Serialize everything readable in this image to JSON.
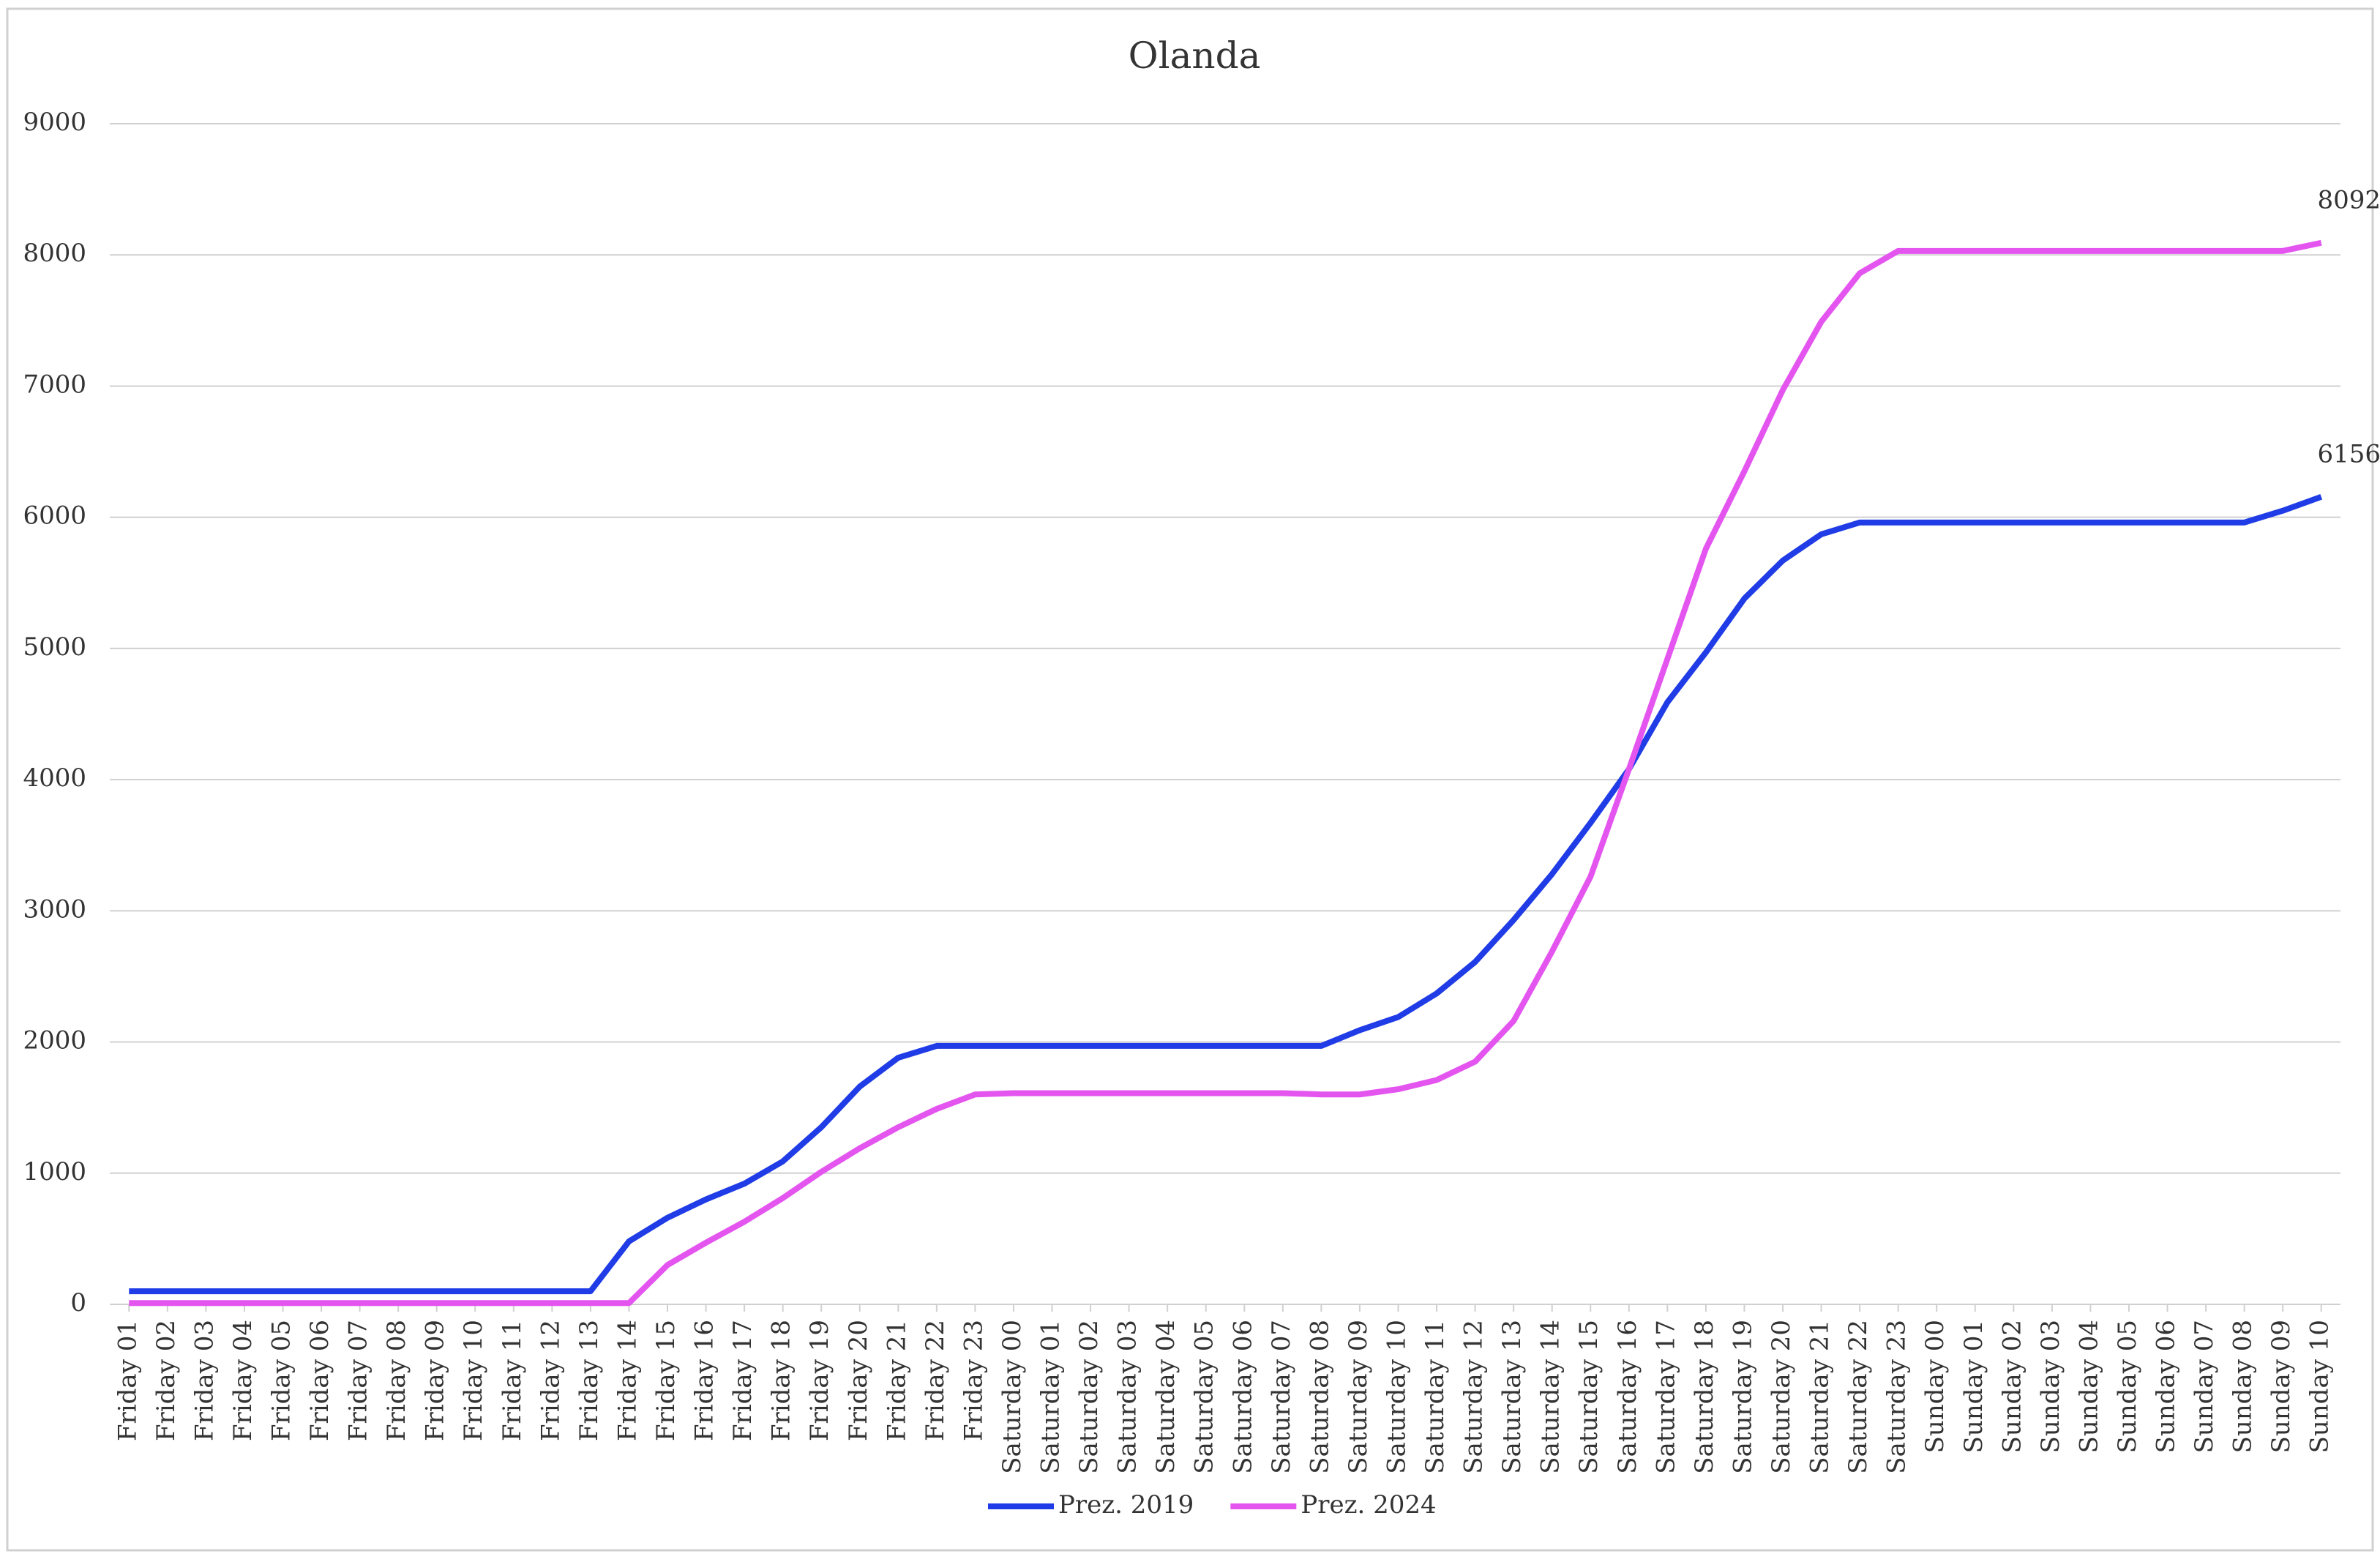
{
  "chart_data": {
    "type": "line",
    "title": "Olanda",
    "categories": [
      "Friday 01",
      "Friday 02",
      "Friday 03",
      "Friday 04",
      "Friday 05",
      "Friday 06",
      "Friday 07",
      "Friday 08",
      "Friday 09",
      "Friday 10",
      "Friday 11",
      "Friday 12",
      "Friday 13",
      "Friday 14",
      "Friday 15",
      "Friday 16",
      "Friday 17",
      "Friday 18",
      "Friday 19",
      "Friday 20",
      "Friday 21",
      "Friday 22",
      "Friday 23",
      "Saturday 00",
      "Saturday 01",
      "Saturday 02",
      "Saturday 03",
      "Saturday 04",
      "Saturday 05",
      "Saturday 06",
      "Saturday 07",
      "Saturday 08",
      "Saturday 09",
      "Saturday 10",
      "Saturday 11",
      "Saturday 12",
      "Saturday 13",
      "Saturday 14",
      "Saturday 15",
      "Saturday 16",
      "Saturday 17",
      "Saturday 18",
      "Saturday 19",
      "Saturday 20",
      "Saturday 21",
      "Saturday 22",
      "Saturday 23",
      "Sunday 00",
      "Sunday 01",
      "Sunday 02",
      "Sunday 03",
      "Sunday 04",
      "Sunday 05",
      "Sunday 06",
      "Sunday 07",
      "Sunday 08",
      "Sunday 09",
      "Sunday 10"
    ],
    "series": [
      {
        "name": "Prez. 2019",
        "color": "#1f3ce6",
        "values": [
          100,
          100,
          100,
          100,
          100,
          100,
          100,
          100,
          100,
          100,
          100,
          100,
          100,
          480,
          660,
          800,
          920,
          1090,
          1350,
          1660,
          1880,
          1970,
          1970,
          1970,
          1970,
          1970,
          1970,
          1970,
          1970,
          1970,
          1970,
          1970,
          2090,
          2190,
          2370,
          2610,
          2930,
          3280,
          3670,
          4080,
          4590,
          4970,
          5380,
          5670,
          5870,
          5960,
          5960,
          5960,
          5960,
          5960,
          5960,
          5960,
          5960,
          5960,
          5960,
          5960,
          6050,
          6156
        ]
      },
      {
        "name": "Prez. 2024",
        "color": "#e455f0",
        "values": [
          10,
          10,
          10,
          10,
          10,
          10,
          10,
          10,
          10,
          10,
          10,
          10,
          10,
          10,
          300,
          470,
          630,
          810,
          1010,
          1190,
          1350,
          1490,
          1600,
          1610,
          1610,
          1610,
          1610,
          1610,
          1610,
          1610,
          1610,
          1600,
          1600,
          1640,
          1710,
          1850,
          2160,
          2690,
          3260,
          4080,
          4920,
          5760,
          6350,
          6970,
          7490,
          7860,
          8030,
          8030,
          8030,
          8030,
          8030,
          8030,
          8030,
          8030,
          8030,
          8030,
          8030,
          8092
        ]
      }
    ],
    "ylim": [
      0,
      9000
    ],
    "yticks": [
      0,
      1000,
      2000,
      3000,
      4000,
      5000,
      6000,
      7000,
      8000,
      9000
    ],
    "grid": true,
    "legend": "bottom"
  }
}
